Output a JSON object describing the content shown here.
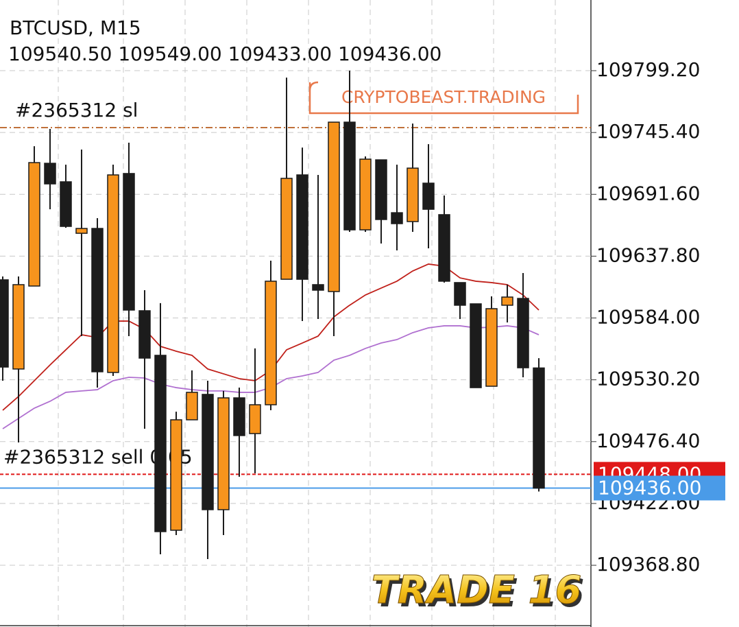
{
  "chart_data": {
    "type": "candlestick",
    "title": "BTCUSD, M15",
    "subtitle": "109540.50 109549.00 109433.00 109436.00",
    "open": [
      109617.2,
      109539.6,
      109611.8,
      109718.6,
      109702.5,
      109657.7,
      109661.9,
      109536.6,
      109709.7,
      109590.3,
      109551.5,
      109399.3,
      109495.4,
      109517.5,
      109417.2,
      109514.5,
      109483.4,
      109508.5,
      109617.7,
      109708.5,
      109613.0,
      109607.0,
      109754.4,
      109660.7,
      109721.6,
      109675.6,
      109667.9,
      109701.3,
      109673.9,
      109614.8,
      109596.3,
      109524.6,
      109595.1,
      109601.0,
      109540.5
    ],
    "high": [
      109620.1,
      109620.1,
      109733.5,
      109748.5,
      109717.4,
      109730.6,
      109670.9,
      109717.4,
      109736.5,
      109608.2,
      109596.9,
      109502.5,
      109538.4,
      109529.4,
      109520.5,
      109523.4,
      109557.5,
      109633.9,
      109793.2,
      109732.3,
      109708.5,
      109754.4,
      109799.2,
      109724.6,
      109721.6,
      109717.4,
      109753.2,
      109735.3,
      109690.6,
      109614.8,
      109596.3,
      109602.8,
      109613.0,
      109623.1,
      109549.0
    ],
    "low": [
      109529.4,
      109475.7,
      109611.8,
      109678.6,
      109662.5,
      109568.2,
      109523.4,
      109533.6,
      109568.2,
      109487.6,
      109378.4,
      109395.1,
      109495.4,
      109374.2,
      109395.1,
      109445.8,
      109448.8,
      109503.7,
      109617.7,
      109581.3,
      109583.1,
      109568.2,
      109658.9,
      109658.9,
      109648.8,
      109642.8,
      109658.9,
      109644.6,
      109614.8,
      109583.1,
      109523.4,
      109524.6,
      109580.1,
      109532.4,
      109433.0
    ],
    "close": [
      109541.3,
      109613.0,
      109719.2,
      109700.7,
      109663.7,
      109661.9,
      109537.2,
      109708.5,
      109590.9,
      109549.1,
      109398.1,
      109495.4,
      109519.3,
      109417.2,
      109514.5,
      109481.7,
      109508.5,
      109616.0,
      109705.5,
      109617.7,
      109608.2,
      109754.4,
      109660.7,
      109722.2,
      109669.7,
      109666.1,
      109714.4,
      109678.6,
      109616.0,
      109595.1,
      109523.4,
      109592.1,
      109602.2,
      109540.7,
      109436.0
    ],
    "colors": {
      "up": "#f7941d",
      "down": "#1c1c1c"
    },
    "overlays": [
      {
        "color": "#c0201a",
        "values": [
          109503.7,
          109515.7,
          109529.4,
          109543.1,
          109556.3,
          109569.4,
          109567.0,
          109581.3,
          109581.3,
          109574.2,
          109559.3,
          109555.1,
          109551.5,
          109539.6,
          109535.4,
          109531.2,
          109529.4,
          109538.4,
          109556.3,
          109562.2,
          109568.2,
          109584.9,
          109595.1,
          109604.0,
          109610.0,
          109616.0,
          109624.9,
          109630.9,
          109629.1,
          109618.9,
          109616.0,
          109614.8,
          109613.0,
          109604.0,
          109590.9
        ]
      },
      {
        "color": "#b070d0",
        "values": [
          109487.6,
          109496.6,
          109505.5,
          109511.5,
          109519.3,
          109520.5,
          109521.6,
          109529.4,
          109532.4,
          109531.8,
          109526.4,
          109523.4,
          109521.6,
          109520.5,
          109520.5,
          109519.3,
          109519.3,
          109523.4,
          109531.2,
          109533.6,
          109536.6,
          109547.3,
          109551.5,
          109557.5,
          109562.2,
          109565.2,
          109571.2,
          109575.4,
          109577.2,
          109577.2,
          109575.4,
          109576.0,
          109577.2,
          109575.4,
          109569.4
        ]
      }
    ],
    "ylim": [
      109315.1,
      109860.7
    ],
    "yticks": [
      {
        "value": 109368.8,
        "label": "109368.80"
      },
      {
        "value": 109422.6,
        "label": "109422.60"
      },
      {
        "value": 109476.4,
        "label": "109476.40"
      },
      {
        "value": 109530.2,
        "label": "109530.20"
      },
      {
        "value": 109584.0,
        "label": "109584.00"
      },
      {
        "value": 109637.8,
        "label": "109637.80"
      },
      {
        "value": 109691.6,
        "label": "109691.60"
      },
      {
        "value": 109745.4,
        "label": "109745.40"
      },
      {
        "value": 109799.2,
        "label": "109799.20"
      }
    ],
    "grid": true,
    "price_lines": [
      {
        "label": "#2365312 sl",
        "value": 109749.7,
        "color": "#c0703a"
      },
      {
        "label": "#2365312 sell 0.05",
        "value": 109448.0,
        "value_label": "109448.00",
        "color": "#e01818"
      },
      {
        "value": 109436.0,
        "value_label": "109436.00",
        "color": "#4a9be8"
      }
    ],
    "annotations": [
      {
        "text": "CRYPTOBEAST.TRADING"
      },
      {
        "text": "TRADE 16"
      }
    ]
  }
}
